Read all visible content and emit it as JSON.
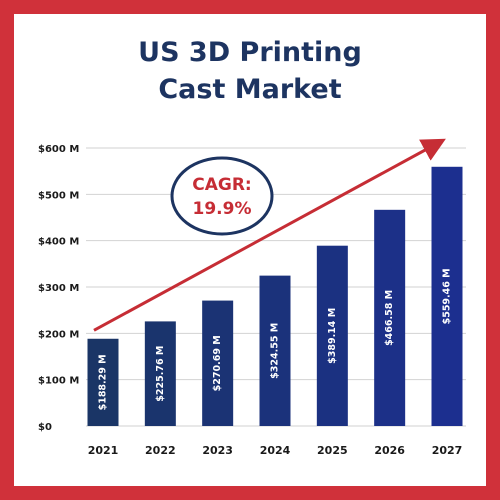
{
  "chart_data": {
    "type": "bar",
    "title_lines": [
      "US 3D Printing",
      "Cast Market"
    ],
    "categories": [
      "2021",
      "2022",
      "2023",
      "2024",
      "2025",
      "2026",
      "2027"
    ],
    "values": [
      188.29,
      225.76,
      270.69,
      324.55,
      389.14,
      466.58,
      559.46
    ],
    "value_labels": [
      "$188.29 M",
      "$225.76 M",
      "$270.69 M",
      "$324.55 M",
      "$389.14 M",
      "$466.58 M",
      "$559.46 M"
    ],
    "ylim": [
      0,
      600
    ],
    "yticks": [
      0,
      100,
      200,
      300,
      400,
      500,
      600
    ],
    "ytick_labels": [
      "$0",
      "$100 M",
      "$200 M",
      "$300 M",
      "$400 M",
      "$500 M",
      "$600 M"
    ],
    "grid": true,
    "annotation": {
      "label": "CAGR:",
      "value": "19.9%",
      "trend_arrow": {
        "from_value": 200,
        "to_value": 600,
        "direction": "up-right"
      }
    },
    "colors": {
      "bar_start": "#1a3566",
      "bar_end": "#1c2f8f",
      "accent": "#c62d35",
      "frame": "#d0313a",
      "title": "#1d3461"
    }
  }
}
